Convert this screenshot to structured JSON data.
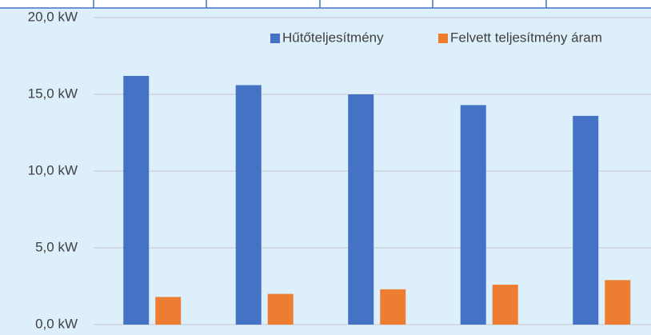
{
  "chart_data": {
    "type": "bar",
    "categories": [
      null,
      null,
      null,
      null,
      null
    ],
    "series": [
      {
        "name": "Hűtőteljesítmény",
        "color": "#4472c4",
        "values": [
          16.2,
          15.6,
          15.0,
          14.3,
          13.6
        ]
      },
      {
        "name": "Felvett teljesítmény áram",
        "color": "#ed7d31",
        "values": [
          1.8,
          2.0,
          2.3,
          2.6,
          2.9
        ]
      }
    ],
    "ylim": [
      0,
      20
    ],
    "yticks": [
      {
        "value": 0,
        "label": "0,0 kW"
      },
      {
        "value": 5,
        "label": "5,0 kW"
      },
      {
        "value": 10,
        "label": "10,0 kW"
      },
      {
        "value": 15,
        "label": "15,0 kW"
      },
      {
        "value": 20,
        "label": "20,0 kW"
      }
    ],
    "grid": true,
    "legend": "upper right"
  }
}
